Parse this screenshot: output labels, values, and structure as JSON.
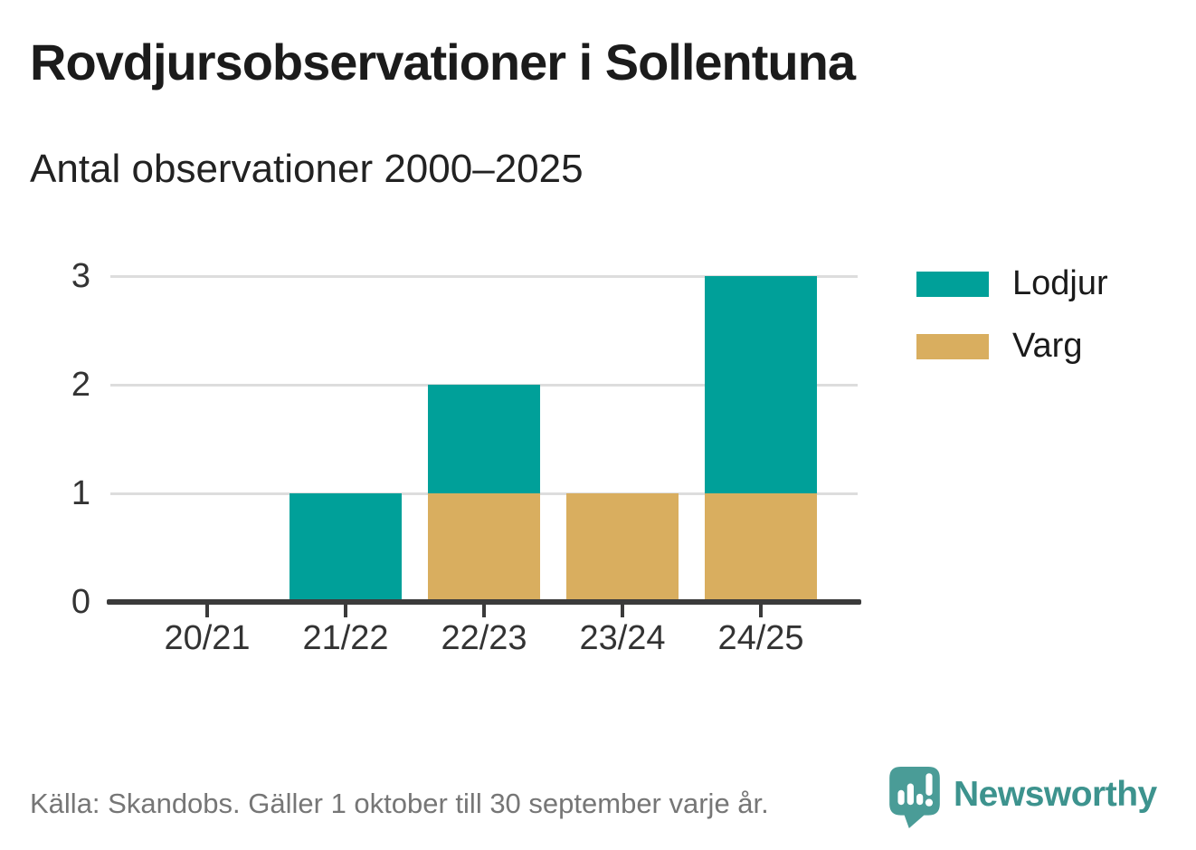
{
  "title": "Rovdjursobservationer i Sollentuna",
  "subtitle": "Antal observationer 2000–2025",
  "footer": {
    "source": "Källa: Skandobs. Gäller 1 oktober till 30 september varje år.",
    "brand": "Newsworthy"
  },
  "colors": {
    "lodjur": "#00a099",
    "varg": "#d9ae5f",
    "axis": "#3b3b3b",
    "grid": "#dddddd",
    "title_text": "#1b1b1b",
    "label_text": "#333333",
    "footer_text": "#767676",
    "brand_teal": "#3d938e",
    "logo_bubble": "#4a9c97"
  },
  "chart_data": {
    "type": "bar",
    "stacked": true,
    "title": "Rovdjursobservationer i Sollentuna",
    "subtitle": "Antal observationer 2000–2025",
    "categories": [
      "20/21",
      "21/22",
      "22/23",
      "23/24",
      "24/25"
    ],
    "series": [
      {
        "name": "Lodjur",
        "color": "#00a099",
        "values": [
          0,
          1,
          1,
          0,
          2
        ]
      },
      {
        "name": "Varg",
        "color": "#d9ae5f",
        "values": [
          0,
          0,
          1,
          1,
          1
        ]
      }
    ],
    "stack_order": [
      "Varg",
      "Lodjur"
    ],
    "totals": [
      0,
      1,
      2,
      1,
      3
    ],
    "yticks": [
      0,
      1,
      2,
      3
    ],
    "ytick_labels": [
      "0",
      "1",
      "2",
      "3"
    ],
    "ylim": [
      0,
      3
    ],
    "xlabel": "",
    "ylabel": "",
    "grid": true,
    "legend_position": "right"
  }
}
